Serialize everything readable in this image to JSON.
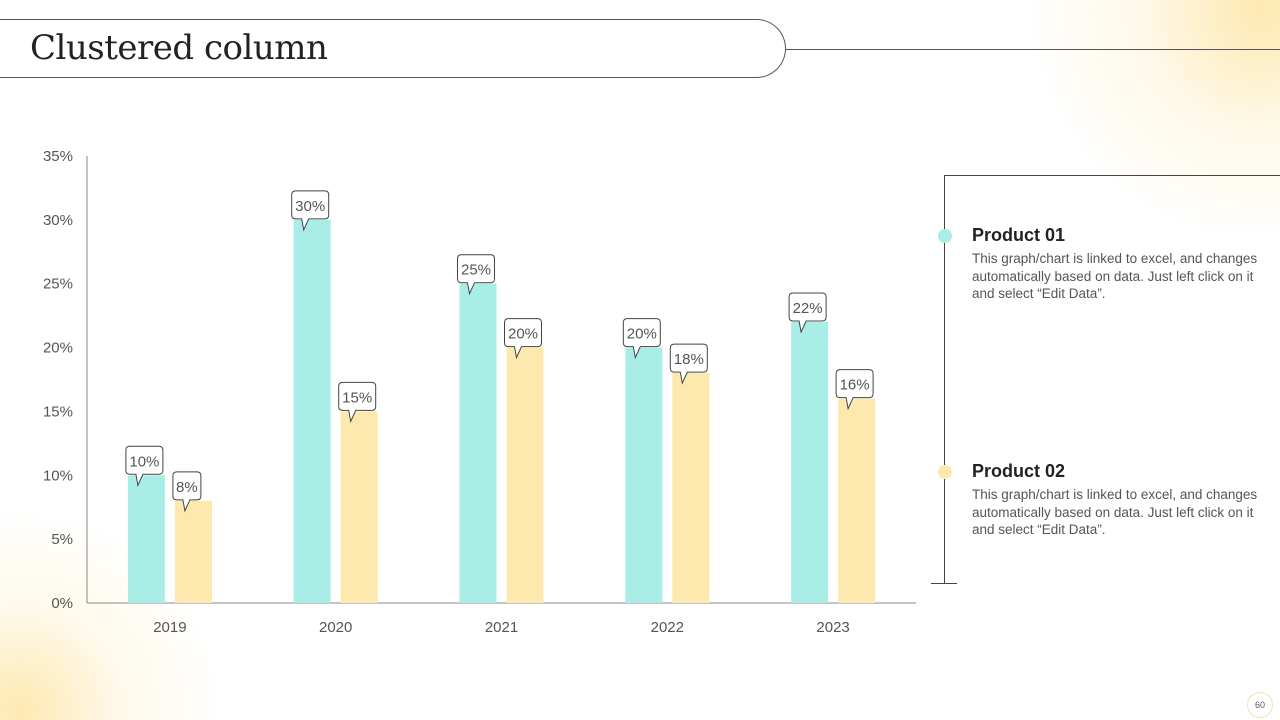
{
  "title": "Clustered column",
  "chart_data": {
    "type": "bar",
    "categories": [
      "2019",
      "2020",
      "2021",
      "2022",
      "2023"
    ],
    "series": [
      {
        "name": "Product 01",
        "values": [
          10,
          30,
          25,
          20,
          22
        ],
        "color": "#a8eee6"
      },
      {
        "name": "Product 02",
        "values": [
          8,
          15,
          20,
          18,
          16
        ],
        "color": "#fde9ad"
      }
    ],
    "data_labels": true,
    "ylim": [
      0,
      35
    ],
    "yticks": [
      0,
      5,
      10,
      15,
      20,
      25,
      30,
      35
    ],
    "ytick_format": "%",
    "grid": false,
    "legend": "right"
  },
  "legend": [
    {
      "title": "Product 01",
      "text": "This graph/chart is linked to excel, and changes automatically based on data. Just left click on it and select “Edit Data”.",
      "color": "#a8eee6"
    },
    {
      "title": "Product 02",
      "text": "This graph/chart is linked to excel, and changes automatically based on data. Just left click on it and select “Edit Data”.",
      "color": "#fde9ad"
    }
  ],
  "page_number": "60"
}
